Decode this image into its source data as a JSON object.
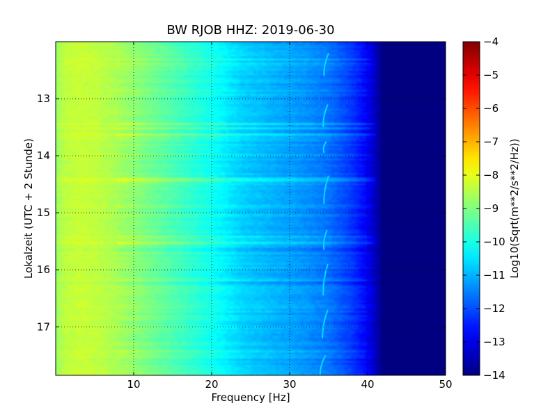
{
  "chart_data": {
    "type": "heatmap",
    "title": "BW RJOB HHZ: 2019-06-30",
    "xlabel": "Frequency [Hz]",
    "ylabel": "Lokalzeit (UTC + 2 Stunde)",
    "colorbar_label": "Log10(Sqrt(m**2/s**2/Hz))",
    "colormap": "jet",
    "xlim": [
      0,
      50
    ],
    "ylim": [
      17.85,
      12.0
    ],
    "x_ticks": [
      10,
      20,
      30,
      40,
      50
    ],
    "y_ticks": [
      13,
      14,
      15,
      16,
      17
    ],
    "color_range": [
      -14,
      -4
    ],
    "colorbar_ticks": [
      -4,
      -5,
      -6,
      -7,
      -8,
      -9,
      -10,
      -11,
      -12,
      -13,
      -14
    ],
    "grid": true,
    "spectrum_profile": {
      "frequency_hz": [
        0,
        1,
        3,
        5,
        8,
        12,
        16,
        20,
        24,
        28,
        32,
        35,
        38,
        40,
        41,
        42,
        45,
        50
      ],
      "level": [
        -8.8,
        -8.4,
        -8.3,
        -8.35,
        -8.6,
        -9.1,
        -9.6,
        -10.1,
        -10.7,
        -11.0,
        -11.3,
        -11.6,
        -12.2,
        -12.8,
        -13.4,
        -14.0,
        -14.0,
        -14.0
      ]
    },
    "spectral_line": {
      "description_level": -10.6,
      "segments": [
        {
          "t0": 12.2,
          "t1": 12.6,
          "f0": 35.0,
          "f1": 34.4
        },
        {
          "t0": 13.1,
          "t1": 13.5,
          "f0": 34.9,
          "f1": 34.3
        },
        {
          "t0": 13.75,
          "t1": 13.95,
          "f0": 34.7,
          "f1": 34.4
        },
        {
          "t0": 14.35,
          "t1": 14.85,
          "f0": 35.0,
          "f1": 34.4
        },
        {
          "t0": 15.3,
          "t1": 15.65,
          "f0": 34.8,
          "f1": 34.4
        },
        {
          "t0": 15.9,
          "t1": 16.45,
          "f0": 34.9,
          "f1": 34.3
        },
        {
          "t0": 16.7,
          "t1": 17.2,
          "f0": 34.9,
          "f1": 34.2
        },
        {
          "t0": 17.5,
          "t1": 17.85,
          "f0": 34.6,
          "f1": 33.9
        }
      ]
    }
  }
}
